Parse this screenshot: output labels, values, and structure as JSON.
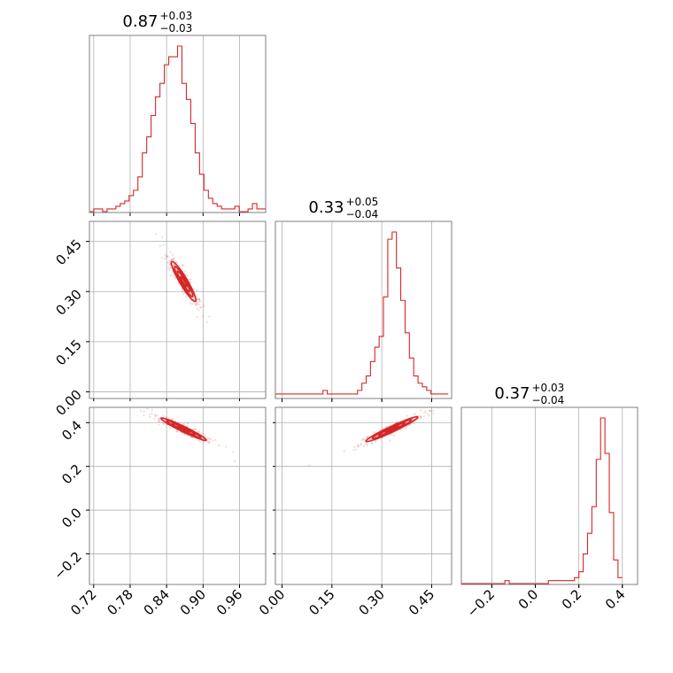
{
  "chart_data": {
    "type": "corner",
    "color": "#d62728",
    "variables": [
      {
        "range": [
          0.713,
          1.003
        ],
        "ticks": [
          0.72,
          0.78,
          0.84,
          0.9,
          0.96
        ],
        "tick_labels": [
          "0.72",
          "0.78",
          "0.84",
          "0.90",
          "0.96"
        ]
      },
      {
        "range": [
          -0.02,
          0.51
        ],
        "ticks": [
          0.0,
          0.15,
          0.3,
          0.45
        ],
        "tick_labels": [
          "0.00",
          "0.15",
          "0.30",
          "0.45"
        ]
      },
      {
        "range": [
          -0.34,
          0.47
        ],
        "ticks": [
          -0.2,
          0.0,
          0.2,
          0.4
        ],
        "tick_labels": [
          "−0.2",
          "0.0",
          "0.2",
          "0.4"
        ]
      }
    ],
    "titles": [
      {
        "value": "0.87",
        "plus": "+0.03",
        "minus": "−0.03"
      },
      {
        "value": "0.33",
        "plus": "+0.05",
        "minus": "−0.04"
      },
      {
        "value": "0.37",
        "plus": "+0.03",
        "minus": "−0.04"
      }
    ],
    "histograms": [
      {
        "edges_start": 0.713,
        "bin_width": 0.00725,
        "counts": [
          0,
          1,
          1,
          0,
          1,
          1,
          2,
          3,
          4,
          6,
          8,
          13,
          22,
          28,
          36,
          43,
          48,
          55,
          58,
          58,
          62,
          48,
          42,
          33,
          22,
          14,
          8,
          5,
          3,
          2,
          1,
          1,
          1,
          2,
          0,
          0,
          1,
          3,
          1,
          1
        ]
      },
      {
        "edges_start": -0.02,
        "bin_width": 0.013,
        "counts": [
          1,
          1,
          1,
          1,
          1,
          1,
          1,
          1,
          1,
          1,
          1,
          2,
          1,
          1,
          1,
          1,
          1,
          1,
          1,
          2,
          4,
          6,
          10,
          14,
          17,
          28,
          44,
          46,
          36,
          27,
          18,
          11,
          6,
          4,
          3,
          2,
          1,
          1,
          1,
          1
        ]
      },
      {
        "edges_start": -0.34,
        "bin_width": 0.02,
        "counts": [
          0,
          0,
          0,
          0,
          0,
          0,
          0,
          0,
          0,
          0,
          1,
          0,
          0,
          0,
          0,
          0,
          0,
          0,
          0,
          0,
          1,
          1,
          1,
          1,
          1,
          1,
          2,
          4,
          10,
          17,
          26,
          42,
          56,
          44,
          24,
          8,
          2
        ]
      }
    ],
    "correlations": [
      {
        "row": 1,
        "col": 0,
        "mean": [
          0.868,
          0.33
        ],
        "axis_vector": [
          1,
          -3.15
        ],
        "major_sd": 0.0315,
        "minor_sd": 0.0035
      },
      {
        "row": 2,
        "col": 0,
        "mean": [
          0.868,
          0.37
        ],
        "axis_vector": [
          1,
          -1.4
        ],
        "major_sd": 0.0315,
        "minor_sd": 0.004
      },
      {
        "row": 2,
        "col": 1,
        "mean": [
          0.33,
          0.37
        ],
        "axis_vector": [
          1,
          0.72
        ],
        "major_sd": 0.048,
        "minor_sd": 0.006
      }
    ],
    "contour_levels_sigma": [
      0.5,
      1.0,
      1.5,
      2.0
    ],
    "grid": true
  }
}
